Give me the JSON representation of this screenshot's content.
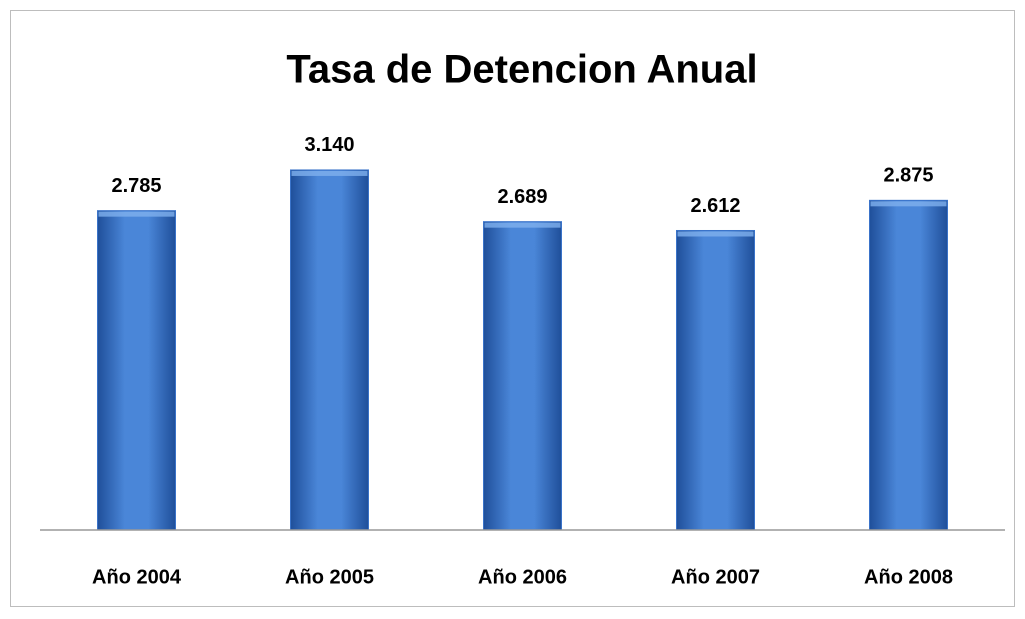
{
  "chart_data": {
    "type": "bar",
    "title": "Tasa de Detencion Anual",
    "categories": [
      "Año 2004",
      "Año 2005",
      "Año 2006",
      "Año 2007",
      "Año 2008"
    ],
    "values": [
      2785,
      3140,
      2689,
      2612,
      2875
    ],
    "value_labels": [
      "2.785",
      "3.140",
      "2.689",
      "2.612",
      "2.875"
    ],
    "color": "#3a73c9",
    "ylim": [
      0,
      3750
    ]
  }
}
